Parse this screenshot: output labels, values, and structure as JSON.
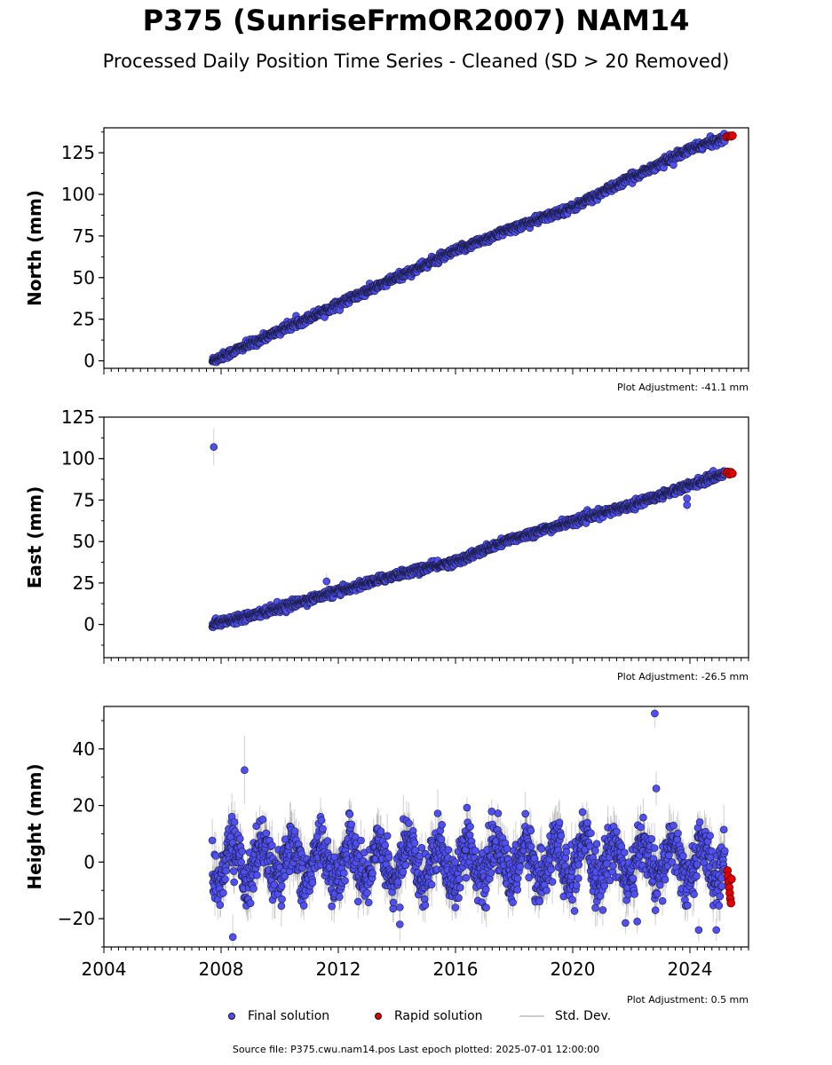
{
  "title": "P375 (SunriseFrmOR2007) NAM14",
  "subtitle": "Processed Daily Position Time Series - Cleaned (SD > 20 Removed)",
  "source_text": "Source file: P375.cwu.nam14.pos  Last epoch plotted: 2025-07-01 12:00:00",
  "legend": {
    "final": "Final solution",
    "rapid": "Rapid solution",
    "std": "Std. Dev."
  },
  "colors": {
    "final": "#5050f0",
    "rapid": "#e00000",
    "std": "#b0b0b0"
  },
  "chart_data": [
    {
      "type": "scatter",
      "ylabel": "North (mm)",
      "adjustment_label": "Plot Adjustment: -41.1 mm",
      "xlim": [
        2004.0,
        2026.0
      ],
      "ylim": [
        -4.5,
        140.0
      ],
      "yticks": [
        0,
        25,
        50,
        75,
        100,
        125
      ],
      "xticks": [
        2004,
        2008,
        2012,
        2016,
        2020,
        2024
      ],
      "show_xticklabels": false,
      "start_year": 2007.7,
      "final_end_year": 2025.2,
      "trend": {
        "start": 0.0,
        "rate": 7.6
      },
      "key_points": [
        {
          "x": 2007.7,
          "y": 0.0
        },
        {
          "x": 2010.0,
          "y": 18.0
        },
        {
          "x": 2012.0,
          "y": 34.0
        },
        {
          "x": 2014.0,
          "y": 50.0
        },
        {
          "x": 2016.0,
          "y": 66.0
        },
        {
          "x": 2018.0,
          "y": 80.0
        },
        {
          "x": 2020.0,
          "y": 92.0
        },
        {
          "x": 2022.0,
          "y": 110.0
        },
        {
          "x": 2024.0,
          "y": 127.0
        },
        {
          "x": 2025.2,
          "y": 134.0
        }
      ],
      "rapid": {
        "x": [
          2025.25,
          2025.3,
          2025.35,
          2025.4,
          2025.45
        ],
        "y": [
          134.5,
          135.0,
          135.2,
          134.8,
          135.3
        ]
      },
      "outliers": []
    },
    {
      "type": "scatter",
      "ylabel": "East (mm)",
      "adjustment_label": "Plot Adjustment: -26.5 mm",
      "xlim": [
        2004.0,
        2026.0
      ],
      "ylim": [
        -20.0,
        125.0
      ],
      "yticks": [
        0,
        25,
        50,
        75,
        100,
        125
      ],
      "xticks": [
        2004,
        2008,
        2012,
        2016,
        2020,
        2024
      ],
      "show_xticklabels": false,
      "start_year": 2007.7,
      "final_end_year": 2025.2,
      "trend": {
        "start": 0.0,
        "rate": 5.2
      },
      "key_points": [
        {
          "x": 2007.7,
          "y": 0.0
        },
        {
          "x": 2010.0,
          "y": 10.0
        },
        {
          "x": 2012.0,
          "y": 20.0
        },
        {
          "x": 2014.0,
          "y": 30.0
        },
        {
          "x": 2016.0,
          "y": 38.0
        },
        {
          "x": 2018.0,
          "y": 52.0
        },
        {
          "x": 2020.0,
          "y": 62.0
        },
        {
          "x": 2022.0,
          "y": 72.0
        },
        {
          "x": 2024.0,
          "y": 84.0
        },
        {
          "x": 2025.2,
          "y": 91.0
        }
      ],
      "rapid": {
        "x": [
          2025.25,
          2025.3,
          2025.35,
          2025.4,
          2025.45
        ],
        "y": [
          91.5,
          92.0,
          90.5,
          91.8,
          91.0
        ]
      },
      "outliers": [
        {
          "x": 2007.75,
          "y": 107.0,
          "err": 11.0
        },
        {
          "x": 2011.6,
          "y": 26.0,
          "err": 5.0
        },
        {
          "x": 2023.9,
          "y": 72.0,
          "err": 4.0
        },
        {
          "x": 2023.9,
          "y": 76.0,
          "err": 4.0
        }
      ]
    },
    {
      "type": "scatter",
      "ylabel": "Height (mm)",
      "adjustment_label": "Plot Adjustment: 0.5 mm",
      "xlim": [
        2004.0,
        2026.0
      ],
      "ylim": [
        -30.0,
        55.0
      ],
      "yticks": [
        -20,
        0,
        20,
        40
      ],
      "xticks": [
        2004,
        2008,
        2012,
        2016,
        2020,
        2024
      ],
      "xticklabels": [
        "2004",
        "2008",
        "2012",
        "2016",
        "2020",
        "2024"
      ],
      "show_xticklabels": true,
      "start_year": 2007.7,
      "final_end_year": 2025.2,
      "trend": {
        "start": 0.0,
        "rate": 0.0
      },
      "seasonal_amplitude": 7.0,
      "key_points": [
        {
          "x": 2007.7,
          "y": 0.0
        },
        {
          "x": 2012.0,
          "y": 0.0
        },
        {
          "x": 2016.0,
          "y": 0.0
        },
        {
          "x": 2020.0,
          "y": 0.0
        },
        {
          "x": 2025.2,
          "y": 0.0
        }
      ],
      "rapid": {
        "x": [
          2025.28,
          2025.3,
          2025.32,
          2025.34,
          2025.36,
          2025.38,
          2025.4,
          2025.42
        ],
        "y": [
          -3.0,
          -5.0,
          -7.0,
          -9.0,
          -11.0,
          -13.0,
          -14.5,
          -6.0
        ]
      },
      "outliers": [
        {
          "x": 2008.8,
          "y": 32.5,
          "err": 12.0
        },
        {
          "x": 2022.8,
          "y": 52.5,
          "err": 5.0
        },
        {
          "x": 2022.85,
          "y": 26.0,
          "err": 6.0
        },
        {
          "x": 2014.1,
          "y": -22.0,
          "err": 6.0
        },
        {
          "x": 2014.1,
          "y": -16.0,
          "err": 5.0
        },
        {
          "x": 2008.4,
          "y": -26.5,
          "err": 8.0
        },
        {
          "x": 2021.8,
          "y": -21.5,
          "err": 4.0
        },
        {
          "x": 2022.2,
          "y": -21.0,
          "err": 4.0
        },
        {
          "x": 2024.3,
          "y": -24.0,
          "err": 4.0
        },
        {
          "x": 2024.9,
          "y": -24.0,
          "err": 4.0
        }
      ]
    }
  ]
}
